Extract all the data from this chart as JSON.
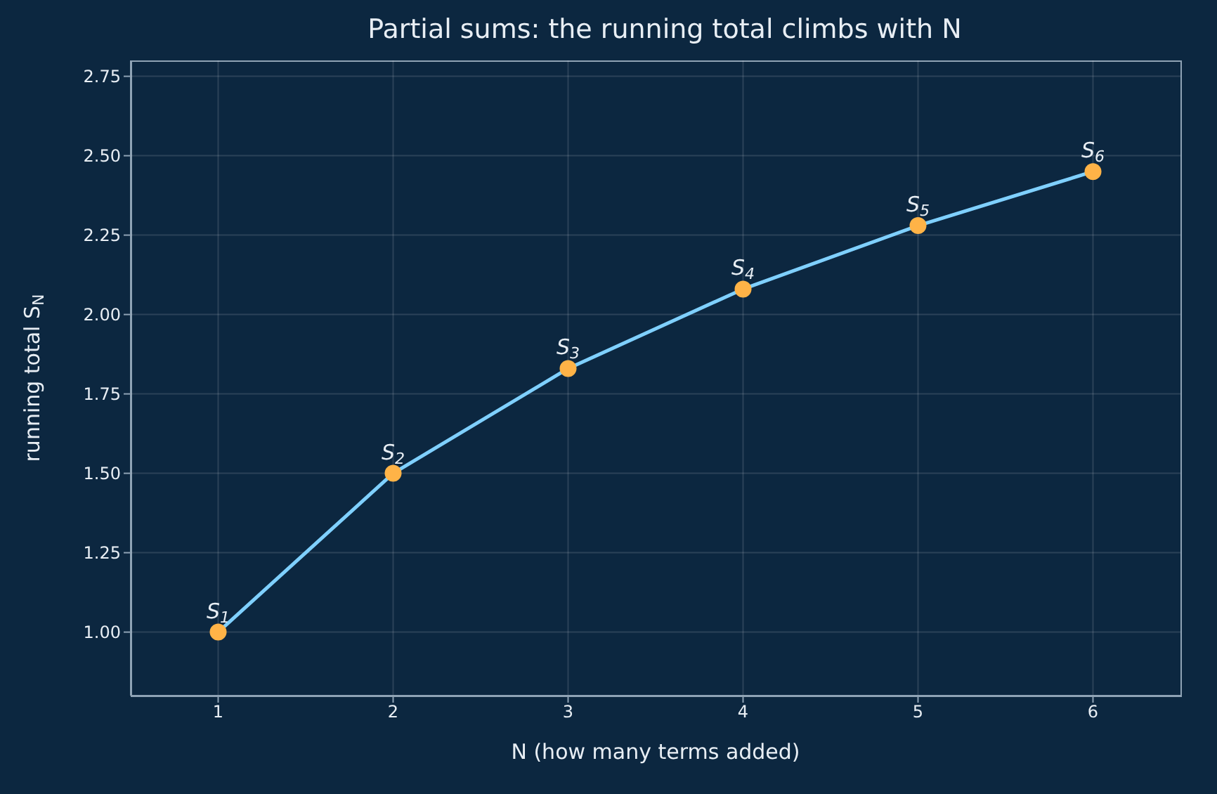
{
  "chart_data": {
    "type": "line",
    "title": "Partial sums: the running total climbs with N",
    "xlabel": "N (how many terms added)",
    "ylabel": "running total S$_{N}$",
    "x": [
      1,
      2,
      3,
      4,
      5,
      6
    ],
    "series": [
      {
        "color": "#7fd0ff",
        "colors": [
          "#ffb347",
          "#ffb347",
          "#ffb347",
          "#ffb347",
          "#ffb347",
          "#ffb347"
        ],
        "values": [
          1,
          1.5,
          1.83,
          2.08,
          2.28,
          2.45
        ]
      }
    ],
    "marker": "circle",
    "line_style": "solid",
    "grid": true,
    "legend": false,
    "xlim": [
      0.5,
      6.5
    ],
    "xticks": [
      1,
      2,
      3,
      4,
      5,
      6
    ],
    "ylim": [
      0.8,
      2.8
    ],
    "yticks": [
      {
        "value": 1,
        "label": "1.00"
      },
      {
        "value": 1.25,
        "label": "1.25"
      },
      {
        "value": 1.5,
        "label": "1.50"
      },
      {
        "value": 1.75,
        "label": "1.75"
      },
      {
        "value": 2,
        "label": "2.00"
      },
      {
        "value": 2.25,
        "label": "2.25"
      },
      {
        "value": 2.5,
        "label": "2.50"
      },
      {
        "value": 2.75,
        "label": "2.75"
      }
    ],
    "annotations": [
      {
        "text": "S$_{1}$",
        "x": 1,
        "y": 1
      },
      {
        "text": "S$_{2}$",
        "x": 2,
        "y": 1.5
      },
      {
        "text": "S$_{3}$",
        "x": 3,
        "y": 1.83
      },
      {
        "text": "S$_{4}$",
        "x": 4,
        "y": 2.08
      },
      {
        "text": "S$_{5}$",
        "x": 5,
        "y": 2.28
      },
      {
        "text": "S$_{6}$",
        "x": 6,
        "y": 2.45
      }
    ]
  }
}
